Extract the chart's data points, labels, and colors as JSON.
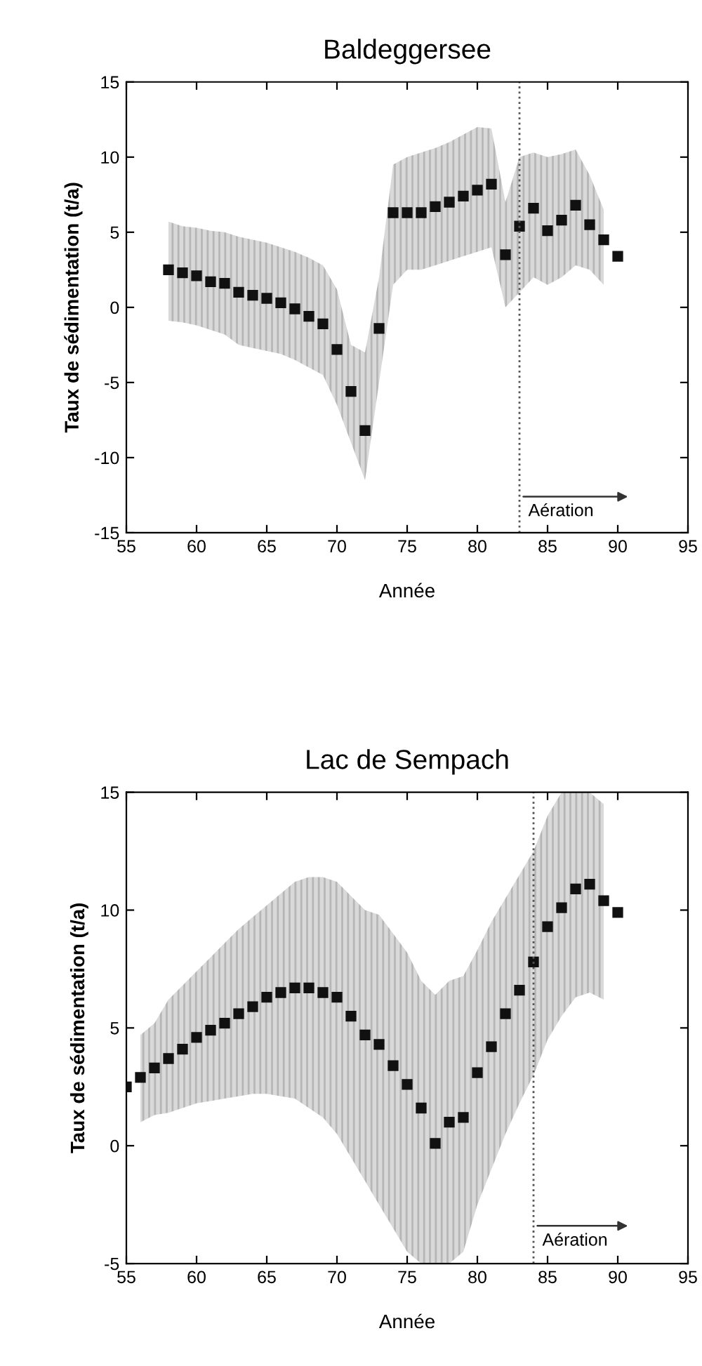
{
  "chart_data": [
    {
      "type": "scatter",
      "title": "Baldeggersee",
      "xlabel": "Année",
      "ylabel": "Taux de sédimentation (t/a)",
      "marker": "square",
      "grid": false,
      "xlim": [
        55,
        95
      ],
      "xticks": [
        55,
        60,
        65,
        70,
        75,
        80,
        85,
        90,
        95
      ],
      "ylim": [
        -15,
        15
      ],
      "yticks": [
        -15,
        -10,
        -5,
        0,
        5,
        10,
        15
      ],
      "x": [
        58,
        59,
        60,
        61,
        62,
        63,
        64,
        65,
        66,
        67,
        68,
        69,
        70,
        71,
        72,
        73,
        74,
        75,
        76,
        77,
        78,
        79,
        80,
        81,
        82,
        83,
        84,
        85,
        86,
        87,
        88,
        89,
        90
      ],
      "series": [
        {
          "color": "#111111",
          "values": [
            2.5,
            2.3,
            2.1,
            1.7,
            1.6,
            1.0,
            0.8,
            0.6,
            0.3,
            -0.1,
            -0.6,
            -1.1,
            -2.8,
            -5.6,
            -8.2,
            -1.4,
            6.3,
            6.3,
            6.3,
            6.7,
            7.0,
            7.4,
            7.8,
            8.2,
            3.5,
            5.4,
            6.6,
            5.1,
            5.8,
            6.8,
            5.5,
            4.5,
            3.4
          ],
          "upper": [
            5.7,
            5.4,
            5.3,
            5.1,
            5.0,
            4.7,
            4.5,
            4.3,
            4.0,
            3.7,
            3.3,
            2.8,
            1.2,
            -2.5,
            -3.0,
            2.0,
            9.5,
            10.0,
            10.3,
            10.6,
            11.0,
            11.5,
            12.0,
            11.9,
            7.0,
            10.0,
            10.3,
            10.0,
            10.2,
            10.5,
            8.8,
            6.5,
            null
          ],
          "lower": [
            -0.9,
            -1.0,
            -1.2,
            -1.5,
            -1.8,
            -2.5,
            -2.7,
            -2.9,
            -3.1,
            -3.5,
            -4.0,
            -4.5,
            -6.5,
            -9.0,
            -11.5,
            -5.0,
            1.5,
            2.5,
            2.5,
            2.8,
            3.1,
            3.4,
            3.7,
            4.0,
            0.0,
            1.0,
            2.0,
            1.5,
            2.0,
            2.8,
            2.5,
            1.5,
            null
          ]
        }
      ],
      "ref_lines": [
        {
          "axis": "x",
          "value": 83,
          "label": "Aération",
          "color": "#555555",
          "line_style": "dotted"
        }
      ]
    },
    {
      "type": "scatter",
      "title": "Lac de Sempach",
      "xlabel": "Année",
      "ylabel": "Taux de sédimentation (t/a)",
      "marker": "square",
      "grid": false,
      "xlim": [
        55,
        95
      ],
      "xticks": [
        55,
        60,
        65,
        70,
        75,
        80,
        85,
        90,
        95
      ],
      "ylim": [
        -5,
        15
      ],
      "yticks": [
        -5,
        0,
        5,
        10,
        15
      ],
      "x": [
        55,
        56,
        57,
        58,
        59,
        60,
        61,
        62,
        63,
        64,
        65,
        66,
        67,
        68,
        69,
        70,
        71,
        72,
        73,
        74,
        75,
        76,
        77,
        78,
        79,
        80,
        81,
        82,
        83,
        84,
        85,
        86,
        87,
        88,
        89,
        90
      ],
      "series": [
        {
          "color": "#111111",
          "values": [
            2.5,
            2.9,
            3.3,
            3.7,
            4.1,
            4.6,
            4.9,
            5.2,
            5.6,
            5.9,
            6.3,
            6.5,
            6.7,
            6.7,
            6.5,
            6.3,
            5.5,
            4.7,
            4.3,
            3.4,
            2.6,
            1.6,
            0.1,
            1.0,
            1.2,
            3.1,
            4.2,
            5.6,
            6.6,
            7.8,
            9.3,
            10.1,
            10.9,
            11.1,
            10.4,
            9.9
          ],
          "upper": [
            null,
            4.7,
            5.2,
            6.2,
            6.8,
            7.4,
            8.0,
            8.6,
            9.2,
            9.7,
            10.2,
            10.7,
            11.2,
            11.4,
            11.4,
            11.2,
            10.6,
            10.0,
            9.8,
            9.0,
            8.2,
            7.0,
            6.4,
            7.0,
            7.2,
            8.3,
            9.5,
            10.5,
            11.5,
            12.5,
            14.0,
            15.0,
            15.0,
            15.0,
            14.5,
            null
          ],
          "lower": [
            null,
            1.0,
            1.3,
            1.4,
            1.6,
            1.8,
            1.9,
            2.0,
            2.1,
            2.2,
            2.2,
            2.1,
            2.0,
            1.6,
            1.2,
            0.5,
            -0.5,
            -1.5,
            -2.5,
            -3.5,
            -4.5,
            -5.0,
            -5.0,
            -5.0,
            -4.5,
            -2.5,
            -1.0,
            0.5,
            1.8,
            3.0,
            4.5,
            5.5,
            6.3,
            6.5,
            6.2,
            null
          ]
        }
      ],
      "ref_lines": [
        {
          "axis": "x",
          "value": 84,
          "label": "Aération",
          "color": "#555555",
          "line_style": "dotted"
        }
      ]
    }
  ]
}
